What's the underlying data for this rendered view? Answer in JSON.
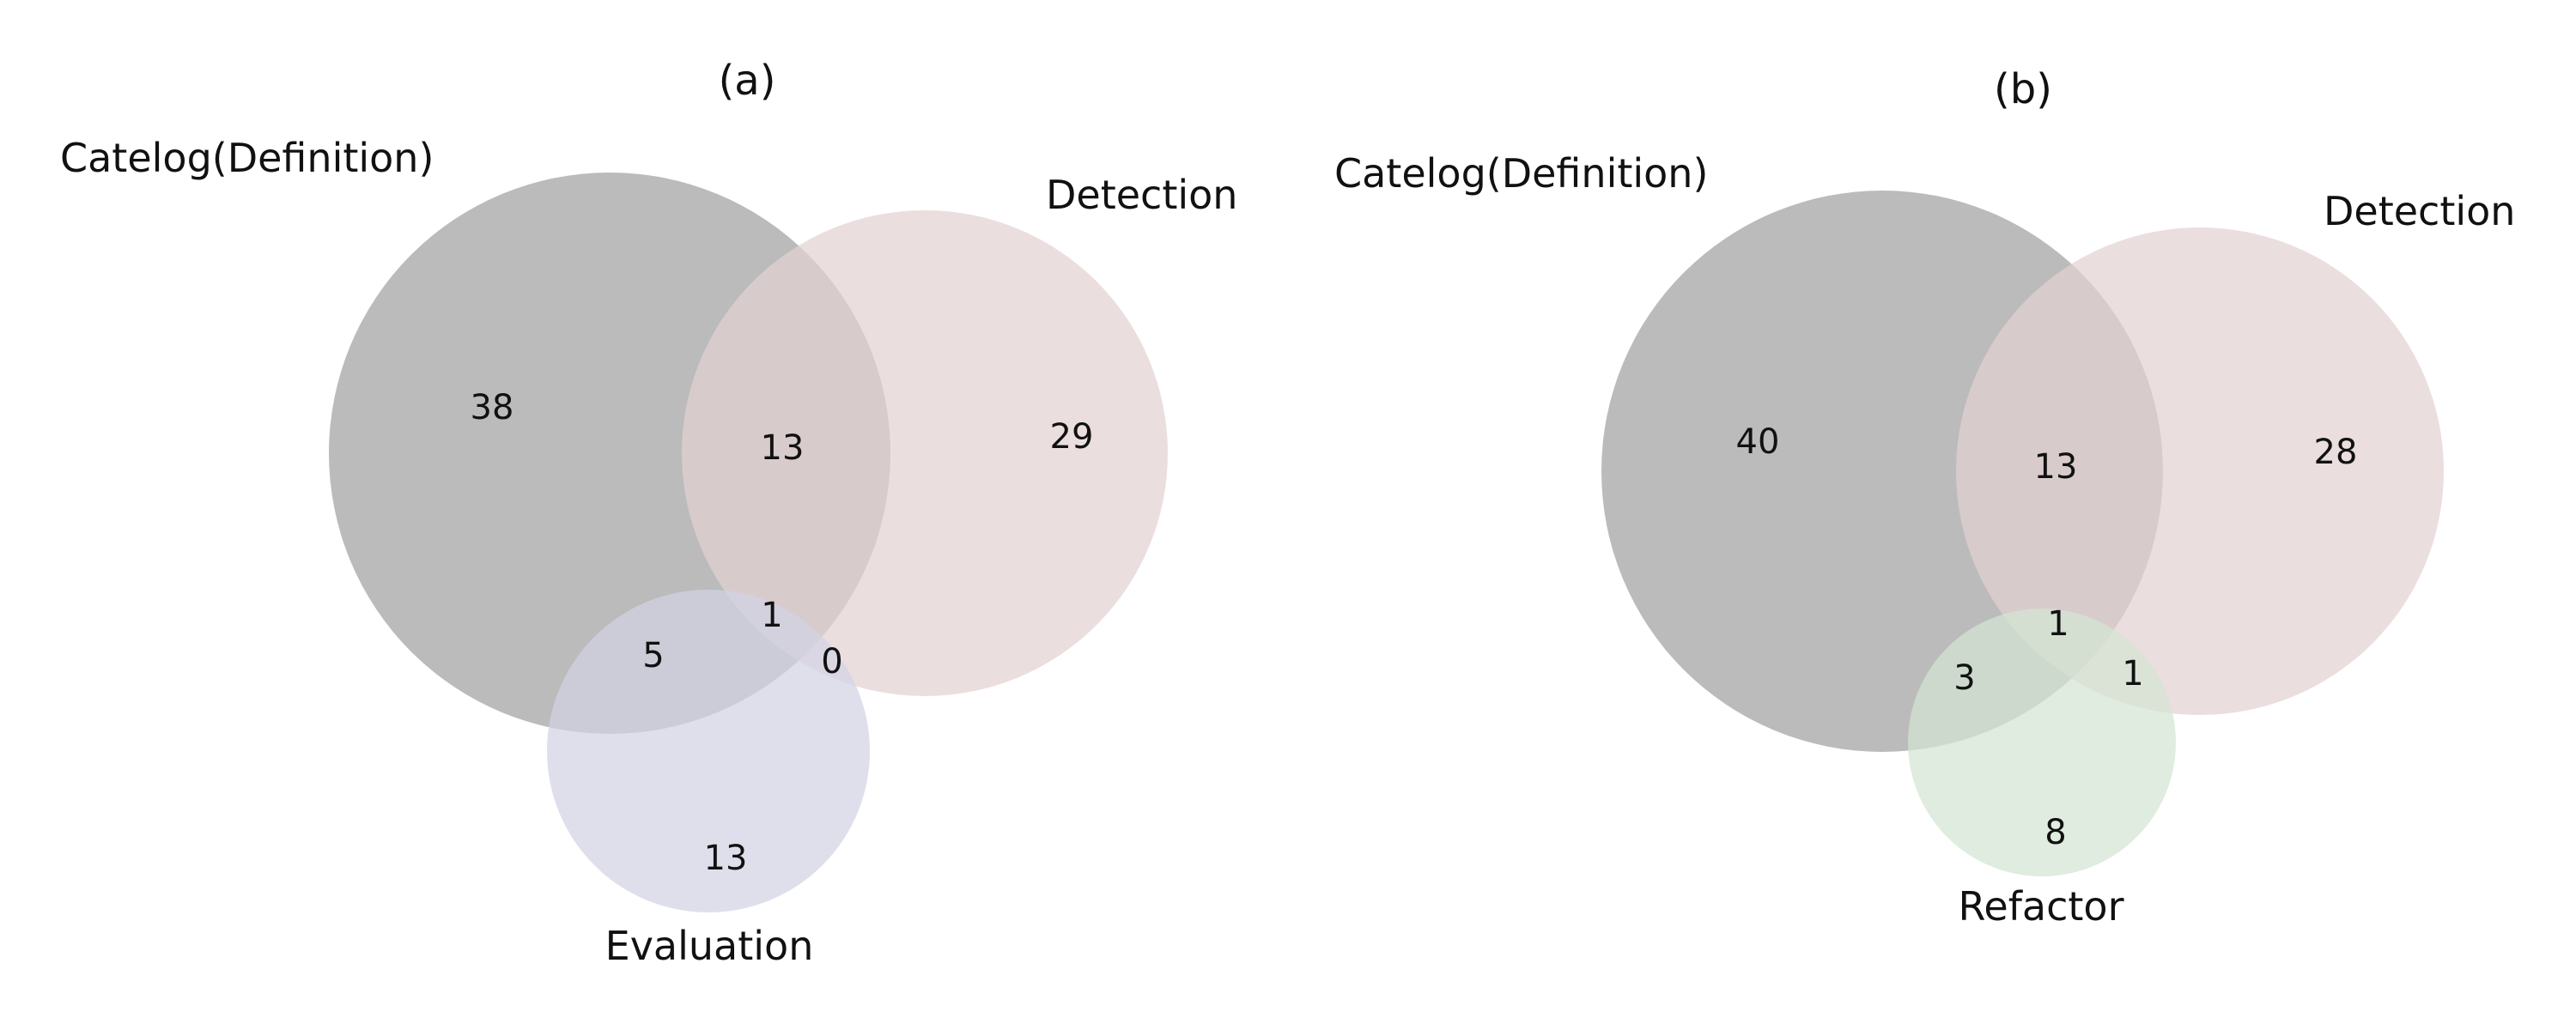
{
  "panels": [
    {
      "title": "(a)",
      "sets": [
        {
          "name": "Catelog(Definition)",
          "color": "#bbbbbb"
        },
        {
          "name": "Detection",
          "color": "#e3d1d3"
        },
        {
          "name": "Evaluation",
          "color": "#d3d2e4"
        }
      ],
      "regions": {
        "only_first": "38",
        "first_second": "13",
        "only_second": "29",
        "all_three": "1",
        "first_third": "5",
        "second_third": "0",
        "only_third": "13"
      }
    },
    {
      "title": "(b)",
      "sets": [
        {
          "name": "Catelog(Definition)",
          "color": "#bbbbbb"
        },
        {
          "name": "Detection",
          "color": "#e3d1d3"
        },
        {
          "name": "Refactor",
          "color": "#d2e5d3"
        }
      ],
      "regions": {
        "only_first": "40",
        "first_second": "13",
        "only_second": "28",
        "all_three": "1",
        "first_third": "3",
        "second_third": "1",
        "only_third": "8"
      }
    }
  ]
}
